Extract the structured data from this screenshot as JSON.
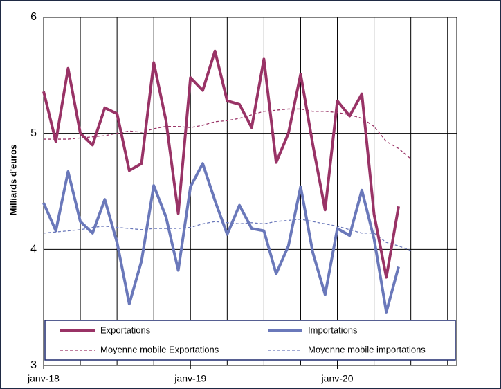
{
  "chart_data": {
    "type": "line",
    "y_label": "Milliards d'euros",
    "categories": [
      "janv-18",
      null,
      null,
      null,
      null,
      null,
      null,
      null,
      null,
      null,
      null,
      null,
      "janv-19",
      null,
      null,
      null,
      null,
      null,
      null,
      null,
      null,
      null,
      null,
      null,
      "janv-20",
      null,
      null,
      null,
      null,
      null,
      null
    ],
    "series": [
      {
        "name": "Exportations",
        "color": "#993366",
        "style": "solid",
        "values": [
          5.36,
          4.93,
          5.56,
          5.0,
          4.9,
          5.22,
          5.17,
          4.68,
          4.74,
          5.61,
          5.11,
          4.31,
          5.48,
          5.37,
          5.71,
          5.28,
          5.25,
          5.05,
          5.64,
          4.75,
          5.0,
          5.51,
          4.9,
          4.34,
          5.28,
          5.15,
          5.34,
          4.3,
          3.76,
          4.37,
          null
        ]
      },
      {
        "name": "Importations",
        "color": "#6a78ba",
        "style": "solid",
        "values": [
          4.4,
          4.16,
          4.67,
          4.24,
          4.14,
          4.43,
          4.06,
          3.53,
          3.9,
          4.55,
          4.28,
          3.82,
          4.54,
          4.74,
          4.42,
          4.13,
          4.38,
          4.18,
          4.16,
          3.79,
          4.03,
          4.54,
          3.97,
          3.61,
          4.18,
          4.12,
          4.51,
          4.09,
          3.46,
          3.85,
          null
        ]
      },
      {
        "name": "Moyenne mobile Exportations",
        "color": "#993366",
        "style": "dashed",
        "values": [
          4.95,
          4.95,
          4.95,
          4.96,
          4.97,
          4.98,
          5.0,
          5.02,
          5.01,
          5.04,
          5.06,
          5.06,
          5.05,
          5.07,
          5.1,
          5.11,
          5.13,
          5.16,
          5.19,
          5.2,
          5.21,
          5.21,
          5.19,
          5.19,
          5.18,
          5.16,
          5.13,
          5.06,
          4.93,
          4.87,
          4.78
        ]
      },
      {
        "name": "Moyenne mobile importations",
        "color": "#6a78ba",
        "style": "dashed",
        "values": [
          4.14,
          4.15,
          4.16,
          4.17,
          4.19,
          4.2,
          4.19,
          4.18,
          4.17,
          4.18,
          4.18,
          4.18,
          4.19,
          4.22,
          4.24,
          4.23,
          4.22,
          4.23,
          4.22,
          4.24,
          4.25,
          4.26,
          4.24,
          4.22,
          4.2,
          4.17,
          4.14,
          4.14,
          4.06,
          4.03,
          3.99
        ]
      }
    ],
    "ylim": [
      3,
      6
    ],
    "yticks": [
      3,
      4,
      5,
      6
    ],
    "grid": true,
    "legend": "bottom"
  }
}
